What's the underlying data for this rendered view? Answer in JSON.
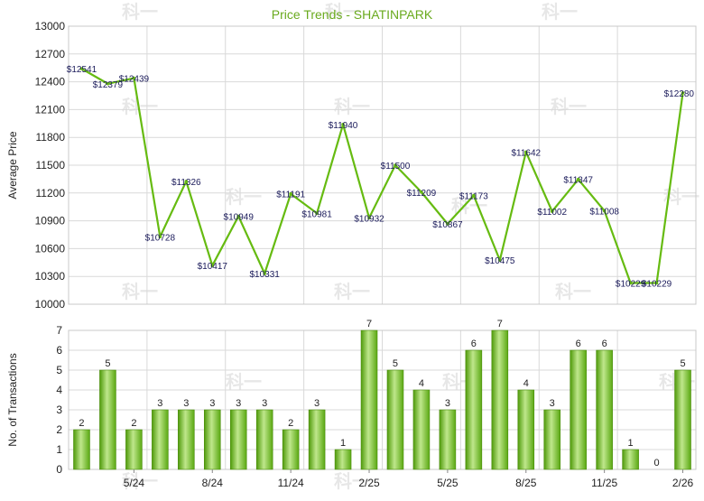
{
  "chart_data": [
    {
      "type": "line",
      "title": "Price Trends - SHATINPARK",
      "ylabel": "Average Price",
      "ylim": [
        10000,
        13000
      ],
      "yticks": [
        10000,
        10300,
        10600,
        10900,
        11200,
        11500,
        11800,
        12100,
        12400,
        12700,
        13000
      ],
      "x": [
        "2024-03",
        "2024-04",
        "2024-05",
        "2024-06",
        "2024-07",
        "2024-08",
        "2024-09",
        "2024-10",
        "2024-11",
        "2024-12",
        "2025-01",
        "2025-02",
        "2025-03",
        "2025-04",
        "2025-05",
        "2025-06",
        "2025-07",
        "2025-08",
        "2025-09",
        "2025-10",
        "2025-11",
        "2025-12",
        "2026-01",
        "2026-02"
      ],
      "values": [
        12541,
        12379,
        12439,
        10728,
        11326,
        10417,
        10949,
        10331,
        11191,
        10981,
        11940,
        10932,
        11500,
        11209,
        10867,
        11173,
        10475,
        11642,
        11002,
        11347,
        11008,
        10229,
        10229,
        12280
      ],
      "data_labels": [
        "$12541",
        "$12379",
        "$12439",
        "$10728",
        "$11326",
        "$10417",
        "$10949",
        "$10331",
        "$11191",
        "$10981",
        "$11940",
        "$10932",
        "$11500",
        "$11209",
        "$10867",
        "$11173",
        "$10475",
        "$11642",
        "$11002",
        "$11347",
        "$11008",
        "$10229",
        "$10229",
        "$12280"
      ],
      "color": "#66bb11",
      "grid": true
    },
    {
      "type": "bar",
      "ylabel": "No. of Transactions",
      "ylim": [
        0,
        7
      ],
      "yticks": [
        0,
        1,
        2,
        3,
        4,
        5,
        6,
        7
      ],
      "x": [
        "2024-03",
        "2024-04",
        "2024-05",
        "2024-06",
        "2024-07",
        "2024-08",
        "2024-09",
        "2024-10",
        "2024-11",
        "2024-12",
        "2025-01",
        "2025-02",
        "2025-03",
        "2025-04",
        "2025-05",
        "2025-06",
        "2025-07",
        "2025-08",
        "2025-09",
        "2025-10",
        "2025-11",
        "2025-12",
        "2026-01",
        "2026-02"
      ],
      "values": [
        2,
        5,
        2,
        3,
        3,
        3,
        3,
        3,
        2,
        3,
        1,
        7,
        5,
        4,
        3,
        6,
        7,
        4,
        3,
        6,
        6,
        1,
        0,
        5
      ],
      "color": "#66bb11",
      "grid": true
    }
  ],
  "x_tick_labels": [
    {
      "index": 2,
      "label": "5/24"
    },
    {
      "index": 5,
      "label": "8/24"
    },
    {
      "index": 8,
      "label": "11/24"
    },
    {
      "index": 11,
      "label": "2/25"
    },
    {
      "index": 14,
      "label": "5/25"
    },
    {
      "index": 17,
      "label": "8/25"
    },
    {
      "index": 20,
      "label": "11/25"
    },
    {
      "index": 23,
      "label": "2/26"
    }
  ],
  "watermark": "科一"
}
